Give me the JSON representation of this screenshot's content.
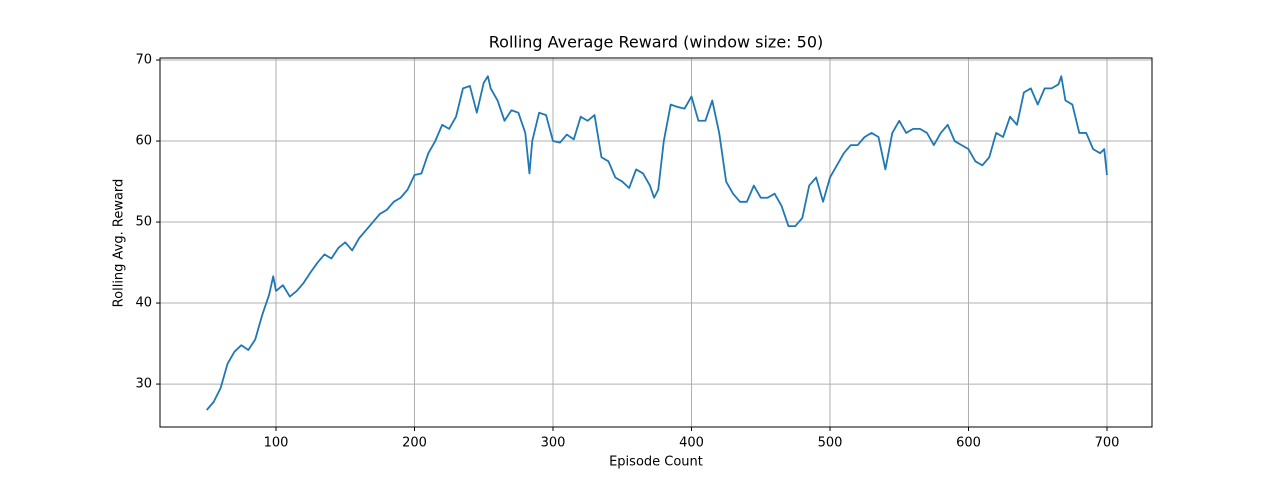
{
  "chart_data": {
    "type": "line",
    "title": "Rolling Average Reward (window size: 50)",
    "x_label": "Episode Count",
    "y_label": "Rolling Avg. Reward",
    "xlim": [
      16.25,
      732.5
    ],
    "ylim": [
      24.7,
      70.25
    ],
    "xticks": [
      100,
      200,
      300,
      400,
      500,
      600,
      700
    ],
    "yticks": [
      30,
      40,
      50,
      60,
      70
    ],
    "grid": true,
    "series": [
      {
        "name": "Rolling Avg. Reward",
        "color": "#1f77b4",
        "x": [
          50,
          55,
          60,
          65,
          70,
          75,
          80,
          85,
          90,
          95,
          98,
          100,
          105,
          110,
          115,
          120,
          125,
          130,
          135,
          140,
          145,
          150,
          155,
          160,
          165,
          170,
          175,
          180,
          185,
          190,
          195,
          200,
          205,
          210,
          215,
          220,
          225,
          230,
          235,
          240,
          245,
          250,
          253,
          255,
          260,
          265,
          270,
          275,
          280,
          283,
          285,
          290,
          295,
          300,
          305,
          310,
          315,
          320,
          325,
          330,
          335,
          340,
          345,
          350,
          355,
          360,
          365,
          370,
          373,
          376,
          380,
          385,
          390,
          395,
          400,
          405,
          410,
          415,
          420,
          425,
          430,
          435,
          440,
          445,
          450,
          455,
          460,
          465,
          470,
          475,
          480,
          485,
          490,
          495,
          500,
          505,
          510,
          515,
          520,
          525,
          530,
          535,
          540,
          545,
          550,
          555,
          560,
          565,
          570,
          575,
          580,
          585,
          590,
          595,
          600,
          605,
          610,
          615,
          620,
          625,
          630,
          635,
          640,
          645,
          650,
          655,
          660,
          665,
          667,
          670,
          675,
          680,
          685,
          690,
          695,
          698,
          700
        ],
        "values": [
          26.8,
          27.8,
          29.5,
          32.5,
          34,
          34.8,
          34.2,
          35.5,
          38.5,
          41,
          43.3,
          41.5,
          42.2,
          40.8,
          41.5,
          42.5,
          43.8,
          45,
          46,
          45.5,
          46.8,
          47.5,
          46.5,
          48,
          49,
          50,
          51,
          51.5,
          52.5,
          53,
          54,
          55.8,
          56,
          58.5,
          60,
          62,
          61.5,
          63,
          66.5,
          66.8,
          63.5,
          67.2,
          68,
          66.5,
          65,
          62.5,
          63.8,
          63.5,
          61,
          56,
          60,
          63.5,
          63.2,
          60,
          59.8,
          60.8,
          60.2,
          63,
          62.5,
          63.2,
          58,
          57.5,
          55.5,
          55,
          54.2,
          56.5,
          56,
          54.5,
          53,
          54,
          60,
          64.5,
          64.2,
          64,
          65.5,
          62.5,
          62.5,
          65,
          61,
          55,
          53.5,
          52.5,
          52.5,
          54.5,
          53,
          53,
          53.5,
          52,
          49.5,
          49.5,
          50.5,
          54.5,
          55.5,
          52.5,
          55.5,
          57,
          58.5,
          59.5,
          59.5,
          60.5,
          61,
          60.5,
          56.5,
          61,
          62.5,
          61,
          61.5,
          61.5,
          61,
          59.5,
          61,
          62,
          60,
          59.5,
          59,
          57.5,
          57,
          58,
          61,
          60.5,
          63,
          62,
          66,
          66.5,
          64.5,
          66.5,
          66.5,
          67,
          68,
          65,
          64.5,
          61,
          61,
          59,
          58.5,
          59,
          55.8
        ]
      }
    ]
  }
}
